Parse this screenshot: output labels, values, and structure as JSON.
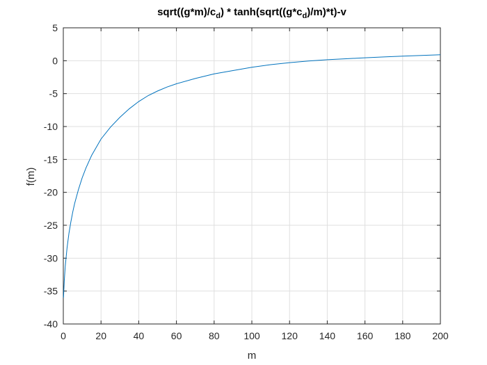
{
  "chart_data": {
    "type": "line",
    "title_parts": {
      "a": "sqrt((g*m)/c",
      "a_sub": "d",
      "b": ") * tanh(sqrt((g*c",
      "b_sub": "d",
      "c": ")/m)*t)-v"
    },
    "xlabel": "m",
    "ylabel": "f(m)",
    "xlim": [
      0,
      200
    ],
    "ylim": [
      -40,
      5
    ],
    "xticks": [
      0,
      20,
      40,
      60,
      80,
      100,
      120,
      140,
      160,
      180,
      200
    ],
    "yticks": [
      5,
      0,
      -5,
      -10,
      -15,
      -20,
      -25,
      -30,
      -35,
      -40
    ],
    "grid": true,
    "series": [
      {
        "color": "#0072BD",
        "x": [
          0.1,
          0.5,
          1,
          2,
          3,
          4,
          5,
          6,
          8,
          10,
          12,
          15,
          20,
          25,
          30,
          35,
          40,
          45,
          50,
          55,
          60,
          70,
          80,
          90,
          100,
          110,
          120,
          130,
          140,
          150,
          160,
          170,
          180,
          190,
          200
        ],
        "y": [
          -36.0,
          -33.5,
          -31.3,
          -28.4,
          -26.2,
          -24.5,
          -23.0,
          -21.7,
          -19.6,
          -17.8,
          -16.3,
          -14.4,
          -11.9,
          -10.1,
          -8.6,
          -7.3,
          -6.2,
          -5.3,
          -4.6,
          -4.0,
          -3.5,
          -2.7,
          -2.0,
          -1.5,
          -1.0,
          -0.6,
          -0.3,
          -0.05,
          0.15,
          0.3,
          0.45,
          0.58,
          0.7,
          0.8,
          0.9
        ]
      }
    ]
  }
}
